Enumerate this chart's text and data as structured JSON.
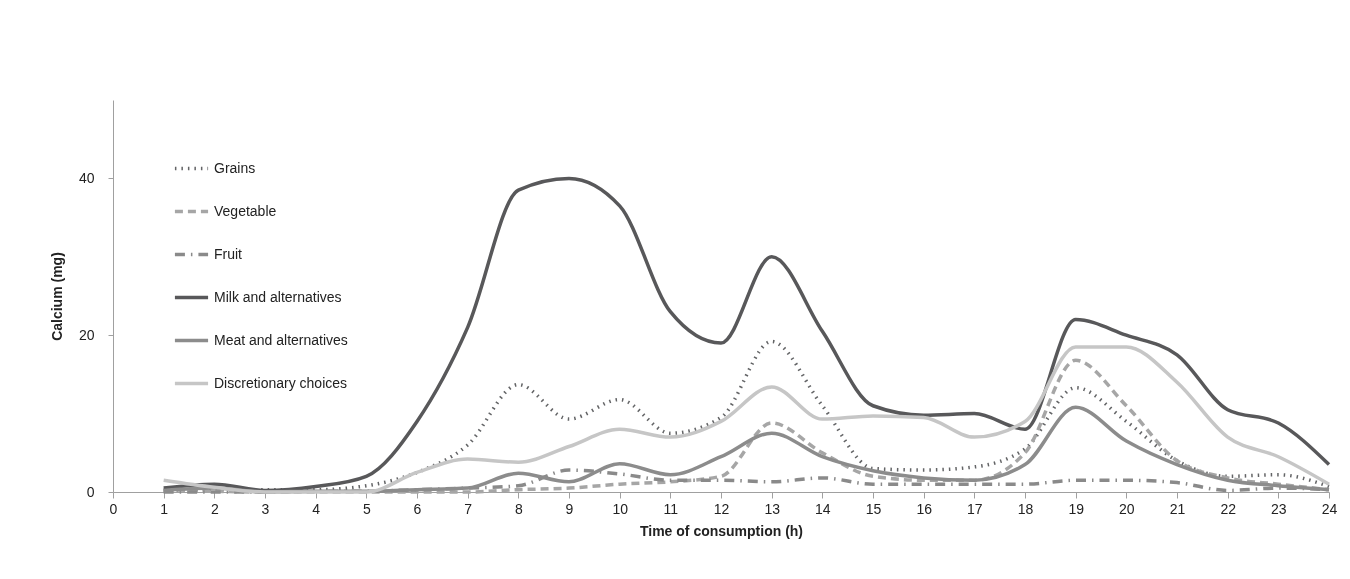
{
  "chart_data": {
    "type": "line",
    "xlabel": "Time of consumption (h)",
    "ylabel": "Calcium (mg)",
    "x": [
      1,
      2,
      3,
      4,
      5,
      6,
      7,
      8,
      9,
      10,
      11,
      12,
      13,
      14,
      15,
      16,
      17,
      18,
      19,
      20,
      21,
      22,
      23,
      24
    ],
    "xlim": [
      0,
      24
    ],
    "xticks": [
      0,
      1,
      2,
      3,
      4,
      5,
      6,
      7,
      8,
      9,
      10,
      11,
      12,
      13,
      14,
      15,
      16,
      17,
      18,
      19,
      20,
      21,
      22,
      23,
      24
    ],
    "ylim": [
      0,
      50
    ],
    "yticks": [
      0,
      20,
      40
    ],
    "grid": false,
    "legend": "top left",
    "series": [
      {
        "name": "Grains",
        "color": "#636466",
        "line_style": "dotted",
        "values": [
          0.2,
          0.3,
          0.3,
          0.3,
          0.8,
          2.5,
          6,
          13.7,
          9.3,
          11.8,
          7.5,
          9.5,
          19.2,
          11,
          3,
          2.8,
          3.2,
          5.5,
          13.3,
          9,
          4,
          2,
          2.2,
          0.7
        ]
      },
      {
        "name": "Vegetable",
        "color": "#a6a6a6",
        "line_style": "dashed",
        "values": [
          0.3,
          0.1,
          0,
          0,
          0,
          0,
          0,
          0.3,
          0.5,
          1,
          1.3,
          2,
          8.8,
          5,
          2,
          1.5,
          1.5,
          5,
          16.8,
          11,
          4,
          1.8,
          1,
          0.3
        ]
      },
      {
        "name": "Fruit",
        "color": "#8a8a8a",
        "line_style": "dashdot",
        "values": [
          0,
          0,
          0,
          0.1,
          0.1,
          0.3,
          0.5,
          0.8,
          2.8,
          2.3,
          1.5,
          1.5,
          1.3,
          1.8,
          1,
          1,
          1,
          1,
          1.5,
          1.5,
          1.2,
          0.2,
          0.5,
          0.3
        ]
      },
      {
        "name": "Milk and alternatives",
        "color": "#58585a",
        "line_style": "solid",
        "values": [
          0.5,
          1,
          0.2,
          0.7,
          2,
          9,
          21,
          38.5,
          40,
          36.5,
          23,
          19,
          30,
          20.5,
          11,
          9.8,
          10,
          8,
          22,
          20,
          17.5,
          10.5,
          8.8,
          3.5
        ]
      },
      {
        "name": "Meat and alternatives",
        "color": "#8c8c8c",
        "line_style": "solid",
        "values": [
          0.2,
          0.5,
          0,
          0.1,
          0.1,
          0.3,
          0.5,
          2.4,
          1.3,
          3.6,
          2.2,
          4.5,
          7.5,
          4.5,
          2.7,
          1.8,
          1.5,
          3.5,
          10.8,
          6.5,
          3.5,
          1.5,
          0.8,
          0.3
        ]
      },
      {
        "name": "Discretionary choices",
        "color": "#c6c6c6",
        "line_style": "solid",
        "values": [
          1.5,
          0.6,
          0,
          0,
          0,
          2.5,
          4.2,
          3.8,
          5.8,
          8,
          7,
          9,
          13.4,
          9.3,
          9.7,
          9.5,
          7,
          9,
          18.5,
          18.5,
          14,
          7,
          4.5,
          1
        ]
      }
    ]
  }
}
